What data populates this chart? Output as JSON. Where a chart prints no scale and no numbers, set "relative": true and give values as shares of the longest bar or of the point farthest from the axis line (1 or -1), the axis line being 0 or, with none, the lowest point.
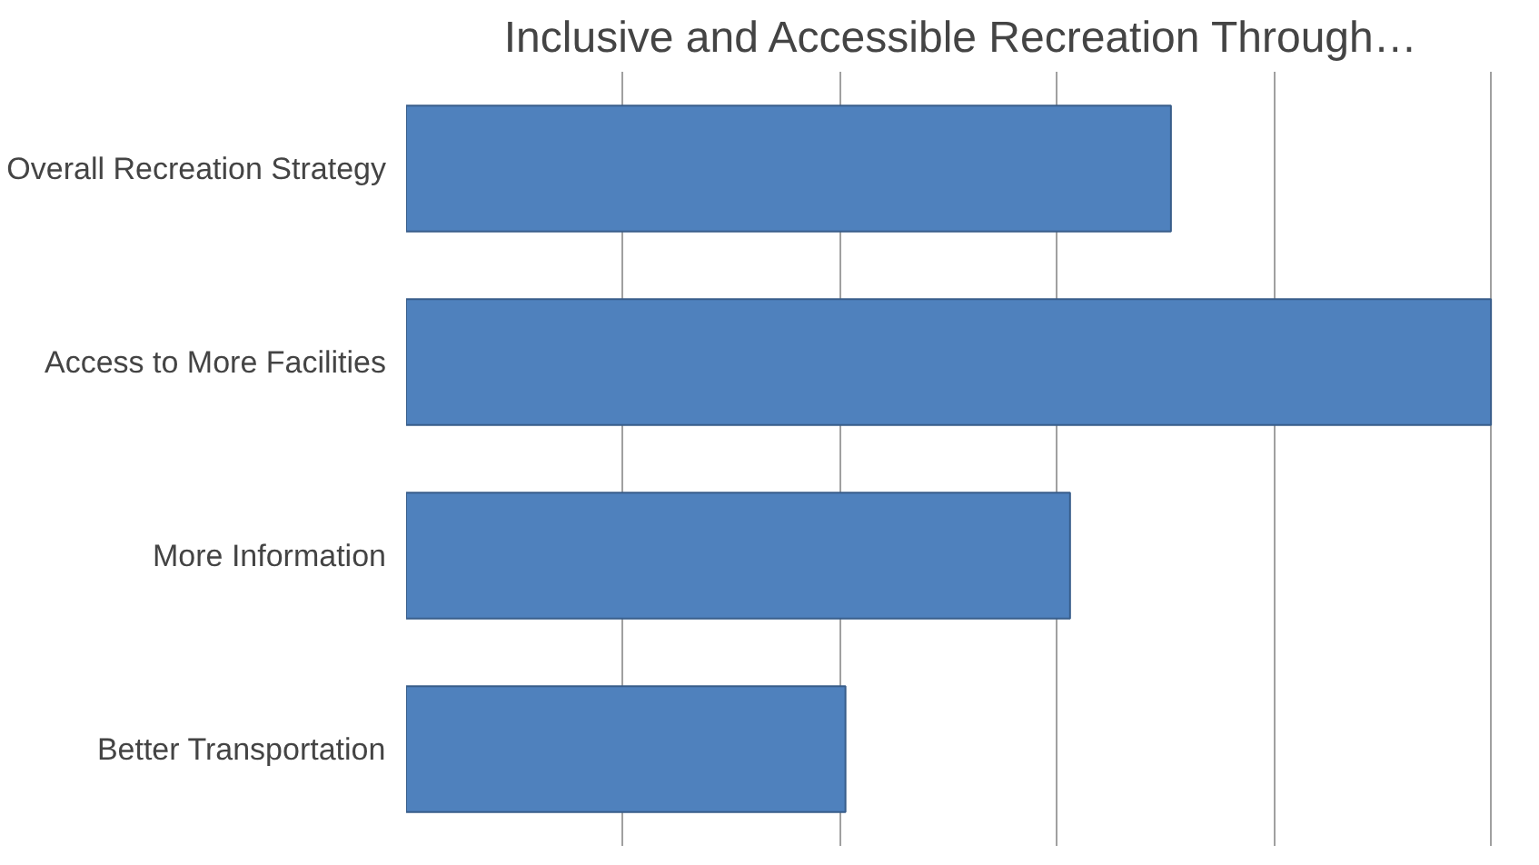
{
  "chart_data": {
    "type": "bar",
    "orientation": "horizontal",
    "relative": true,
    "title": "Inclusive and Accessible Recreation Through…",
    "categories": [
      "Overall Recreation Strategy",
      "Access to More Facilities",
      "More Information",
      "Better Transportation"
    ],
    "values": [
      0.705,
      1,
      0.612,
      0.405
    ],
    "color": "#4f81bd",
    "grid": "x"
  }
}
